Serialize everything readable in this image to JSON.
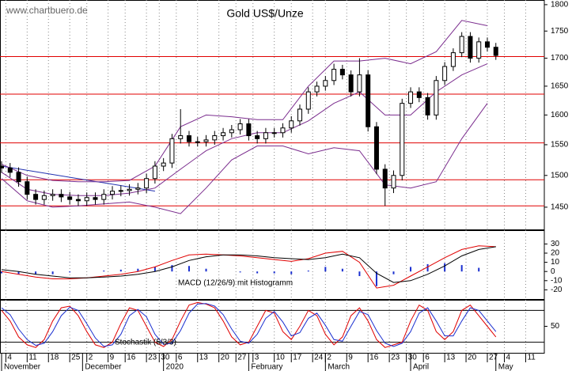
{
  "chart_data": [
    {
      "type": "candlestick",
      "title": "Gold US$/Unze",
      "watermark": "www.chartbuero.de",
      "xlim": [
        0,
        127
      ],
      "ylim": [
        1416,
        1809
      ],
      "log_scale": true,
      "yticks": [
        1450,
        1500,
        1550,
        1600,
        1650,
        1700,
        1750,
        1800
      ],
      "color": "#000000",
      "x": [
        0,
        2,
        4,
        6,
        8,
        10,
        12,
        14,
        16,
        18,
        20,
        22,
        24,
        26,
        28,
        30,
        32,
        34,
        36,
        38,
        40,
        42,
        44,
        46,
        48,
        50,
        52,
        54,
        56,
        58,
        60,
        62,
        64,
        66,
        68,
        70,
        72,
        74,
        76,
        78,
        80,
        82,
        84,
        86,
        88,
        90,
        92,
        94,
        96,
        98,
        100,
        102,
        104,
        106,
        108,
        110,
        112,
        114,
        116
      ],
      "open": [
        1515,
        1512,
        1505,
        1490,
        1470,
        1462,
        1468,
        1470,
        1466,
        1462,
        1460,
        1465,
        1462,
        1470,
        1475,
        1476,
        1478,
        1480,
        1495,
        1515,
        1520,
        1560,
        1565,
        1555,
        1555,
        1558,
        1565,
        1570,
        1575,
        1585,
        1565,
        1560,
        1570,
        1570,
        1578,
        1590,
        1610,
        1640,
        1650,
        1660,
        1680,
        1670,
        1640,
        1670,
        1580,
        1510,
        1480,
        1500,
        1620,
        1640,
        1630,
        1600,
        1660,
        1685,
        1710,
        1740,
        1700,
        1730,
        1720
      ],
      "high": [
        1523,
        1520,
        1513,
        1498,
        1478,
        1476,
        1478,
        1478,
        1474,
        1470,
        1473,
        1473,
        1478,
        1483,
        1484,
        1486,
        1488,
        1503,
        1523,
        1528,
        1568,
        1610,
        1573,
        1563,
        1566,
        1573,
        1578,
        1583,
        1593,
        1593,
        1573,
        1578,
        1578,
        1586,
        1598,
        1618,
        1648,
        1658,
        1668,
        1690,
        1688,
        1678,
        1700,
        1678,
        1588,
        1518,
        1508,
        1628,
        1648,
        1648,
        1638,
        1668,
        1693,
        1718,
        1748,
        1748,
        1738,
        1738,
        1728
      ],
      "low": [
        1504,
        1497,
        1482,
        1462,
        1454,
        1454,
        1460,
        1458,
        1454,
        1452,
        1452,
        1454,
        1454,
        1462,
        1467,
        1468,
        1470,
        1472,
        1487,
        1507,
        1512,
        1552,
        1547,
        1547,
        1547,
        1550,
        1557,
        1562,
        1567,
        1557,
        1552,
        1552,
        1562,
        1562,
        1570,
        1582,
        1602,
        1632,
        1642,
        1652,
        1662,
        1632,
        1632,
        1572,
        1502,
        1452,
        1472,
        1492,
        1612,
        1622,
        1592,
        1592,
        1652,
        1677,
        1702,
        1692,
        1692,
        1712,
        1697
      ],
      "close": [
        1512,
        1505,
        1490,
        1470,
        1462,
        1468,
        1470,
        1466,
        1462,
        1460,
        1465,
        1462,
        1470,
        1475,
        1476,
        1478,
        1480,
        1495,
        1515,
        1520,
        1560,
        1565,
        1555,
        1555,
        1558,
        1565,
        1570,
        1575,
        1585,
        1565,
        1560,
        1570,
        1570,
        1578,
        1590,
        1610,
        1640,
        1650,
        1660,
        1680,
        1670,
        1640,
        1670,
        1580,
        1510,
        1480,
        1500,
        1620,
        1640,
        1630,
        1600,
        1660,
        1685,
        1710,
        1740,
        1700,
        1730,
        1720,
        1705
      ],
      "bands": {
        "color": "#7b2d8e",
        "x": [
          0,
          6,
          12,
          18,
          24,
          30,
          36,
          42,
          48,
          54,
          60,
          66,
          72,
          78,
          84,
          90,
          96,
          102,
          108,
          114
        ],
        "upper": [
          1518,
          1500,
          1492,
          1490,
          1490,
          1492,
          1515,
          1580,
          1600,
          1597,
          1592,
          1592,
          1650,
          1695,
          1695,
          1700,
          1690,
          1712,
          1770,
          1760
        ],
        "middle": [
          1505,
          1478,
          1470,
          1468,
          1468,
          1472,
          1480,
          1510,
          1540,
          1560,
          1570,
          1570,
          1590,
          1620,
          1640,
          1600,
          1600,
          1640,
          1670,
          1690
        ],
        "lower": [
          1495,
          1460,
          1450,
          1452,
          1455,
          1458,
          1450,
          1440,
          1480,
          1525,
          1548,
          1548,
          1535,
          1545,
          1540,
          1485,
          1480,
          1490,
          1560,
          1620
        ]
      },
      "levels": {
        "color": "#e00000",
        "values": [
          1452,
          1493,
          1553,
          1636,
          1703
        ]
      },
      "trendline": {
        "color": "#2030b0",
        "x": [
          0,
          36
        ],
        "y": [
          1515,
          1475
        ]
      }
    },
    {
      "type": "macd",
      "label": "MACD (12/26/9) mit Histogramm",
      "xlim": [
        0,
        127
      ],
      "ylim": [
        -30,
        45
      ],
      "yticks": [
        -20,
        -10,
        0,
        10,
        20,
        30
      ],
      "x": [
        0,
        4,
        8,
        12,
        16,
        20,
        24,
        28,
        32,
        36,
        40,
        44,
        48,
        52,
        56,
        60,
        64,
        68,
        72,
        76,
        80,
        84,
        88,
        92,
        96,
        100,
        104,
        108,
        112,
        116
      ],
      "series": [
        {
          "color": "#e00000",
          "values": [
            0,
            -3,
            -6,
            -8,
            -8,
            -7,
            -5,
            -3,
            0,
            5,
            12,
            18,
            19,
            18,
            17,
            15,
            13,
            11,
            14,
            20,
            22,
            10,
            -18,
            -15,
            -5,
            5,
            15,
            24,
            28,
            27
          ]
        },
        {
          "color": "#000000",
          "values": [
            2,
            0,
            -3,
            -5,
            -7,
            -7,
            -6,
            -5,
            -3,
            0,
            5,
            12,
            16,
            18,
            18,
            17,
            15,
            14,
            13,
            15,
            19,
            15,
            -2,
            -12,
            -10,
            -3,
            6,
            17,
            24,
            27
          ]
        }
      ],
      "histogram": {
        "color": "#1a2fd0",
        "values": [
          -2,
          -3,
          -3,
          -3,
          -1,
          0,
          1,
          2,
          3,
          5,
          7,
          6,
          3,
          0,
          -1,
          -2,
          -2,
          -3,
          1,
          5,
          3,
          -5,
          -16,
          -3,
          5,
          8,
          9,
          7,
          4,
          0
        ]
      }
    },
    {
      "type": "stochastic",
      "label": "Stochastik (5/3/3)",
      "xlim": [
        0,
        127
      ],
      "ylim": [
        0,
        100
      ],
      "yticks": [
        50
      ],
      "levels": [
        20,
        80
      ],
      "x": [
        0,
        2,
        4,
        6,
        8,
        10,
        12,
        14,
        16,
        18,
        20,
        22,
        24,
        26,
        28,
        30,
        32,
        34,
        36,
        38,
        40,
        42,
        44,
        46,
        48,
        50,
        52,
        54,
        56,
        58,
        60,
        62,
        64,
        66,
        68,
        70,
        72,
        74,
        76,
        78,
        80,
        82,
        84,
        86,
        88,
        90,
        92,
        94,
        96,
        98,
        100,
        102,
        104,
        106,
        108,
        110,
        112,
        114,
        116
      ],
      "series": [
        {
          "color": "#e00000",
          "values": [
            80,
            60,
            30,
            15,
            10,
            25,
            60,
            85,
            88,
            70,
            40,
            15,
            10,
            20,
            55,
            85,
            80,
            50,
            20,
            12,
            25,
            60,
            90,
            95,
            92,
            85,
            60,
            30,
            15,
            20,
            50,
            80,
            75,
            40,
            25,
            50,
            80,
            70,
            35,
            15,
            30,
            70,
            85,
            60,
            25,
            10,
            15,
            20,
            60,
            90,
            80,
            40,
            25,
            40,
            80,
            90,
            70,
            50,
            30
          ]
        },
        {
          "color": "#1a2fd0",
          "values": [
            85,
            72,
            45,
            25,
            14,
            18,
            40,
            70,
            86,
            80,
            55,
            28,
            12,
            15,
            35,
            70,
            82,
            68,
            35,
            16,
            18,
            42,
            75,
            92,
            93,
            88,
            72,
            45,
            22,
            18,
            35,
            65,
            78,
            58,
            32,
            38,
            65,
            75,
            52,
            25,
            22,
            50,
            78,
            72,
            42,
            18,
            12,
            18,
            40,
            75,
            85,
            60,
            32,
            32,
            60,
            85,
            80,
            60,
            40
          ]
        }
      ],
      "xticks": [
        {
          "value": 1,
          "label": "4"
        },
        {
          "value": 6,
          "label": "11"
        },
        {
          "value": 11,
          "label": "18"
        },
        {
          "value": 16,
          "label": "25"
        },
        {
          "value": 20,
          "label": "2"
        },
        {
          "value": 25,
          "label": "9"
        },
        {
          "value": 29,
          "label": "16"
        },
        {
          "value": 34,
          "label": "23"
        },
        {
          "value": 37,
          "label": "30"
        },
        {
          "value": 41,
          "label": "6"
        },
        {
          "value": 46,
          "label": "13"
        },
        {
          "value": 51,
          "label": "20"
        },
        {
          "value": 55,
          "label": "27"
        },
        {
          "value": 59,
          "label": "3"
        },
        {
          "value": 64,
          "label": "10"
        },
        {
          "value": 68,
          "label": "17"
        },
        {
          "value": 73,
          "label": "24"
        },
        {
          "value": 76,
          "label": "2"
        },
        {
          "value": 81,
          "label": "9"
        },
        {
          "value": 86,
          "label": "16"
        },
        {
          "value": 91,
          "label": "23"
        },
        {
          "value": 95,
          "label": "30"
        },
        {
          "value": 99,
          "label": "6"
        },
        {
          "value": 104,
          "label": "13"
        },
        {
          "value": 109,
          "label": "20"
        },
        {
          "value": 114,
          "label": "27"
        },
        {
          "value": 118,
          "label": "4"
        },
        {
          "value": 123,
          "label": "11"
        }
      ],
      "month_ticks": [
        {
          "value": 0,
          "label": "November"
        },
        {
          "value": 19,
          "label": "December"
        },
        {
          "value": 38,
          "label": "2020"
        },
        {
          "value": 58,
          "label": "February"
        },
        {
          "value": 76,
          "label": "March"
        },
        {
          "value": 96,
          "label": "April"
        },
        {
          "value": 116,
          "label": "May"
        }
      ]
    }
  ]
}
